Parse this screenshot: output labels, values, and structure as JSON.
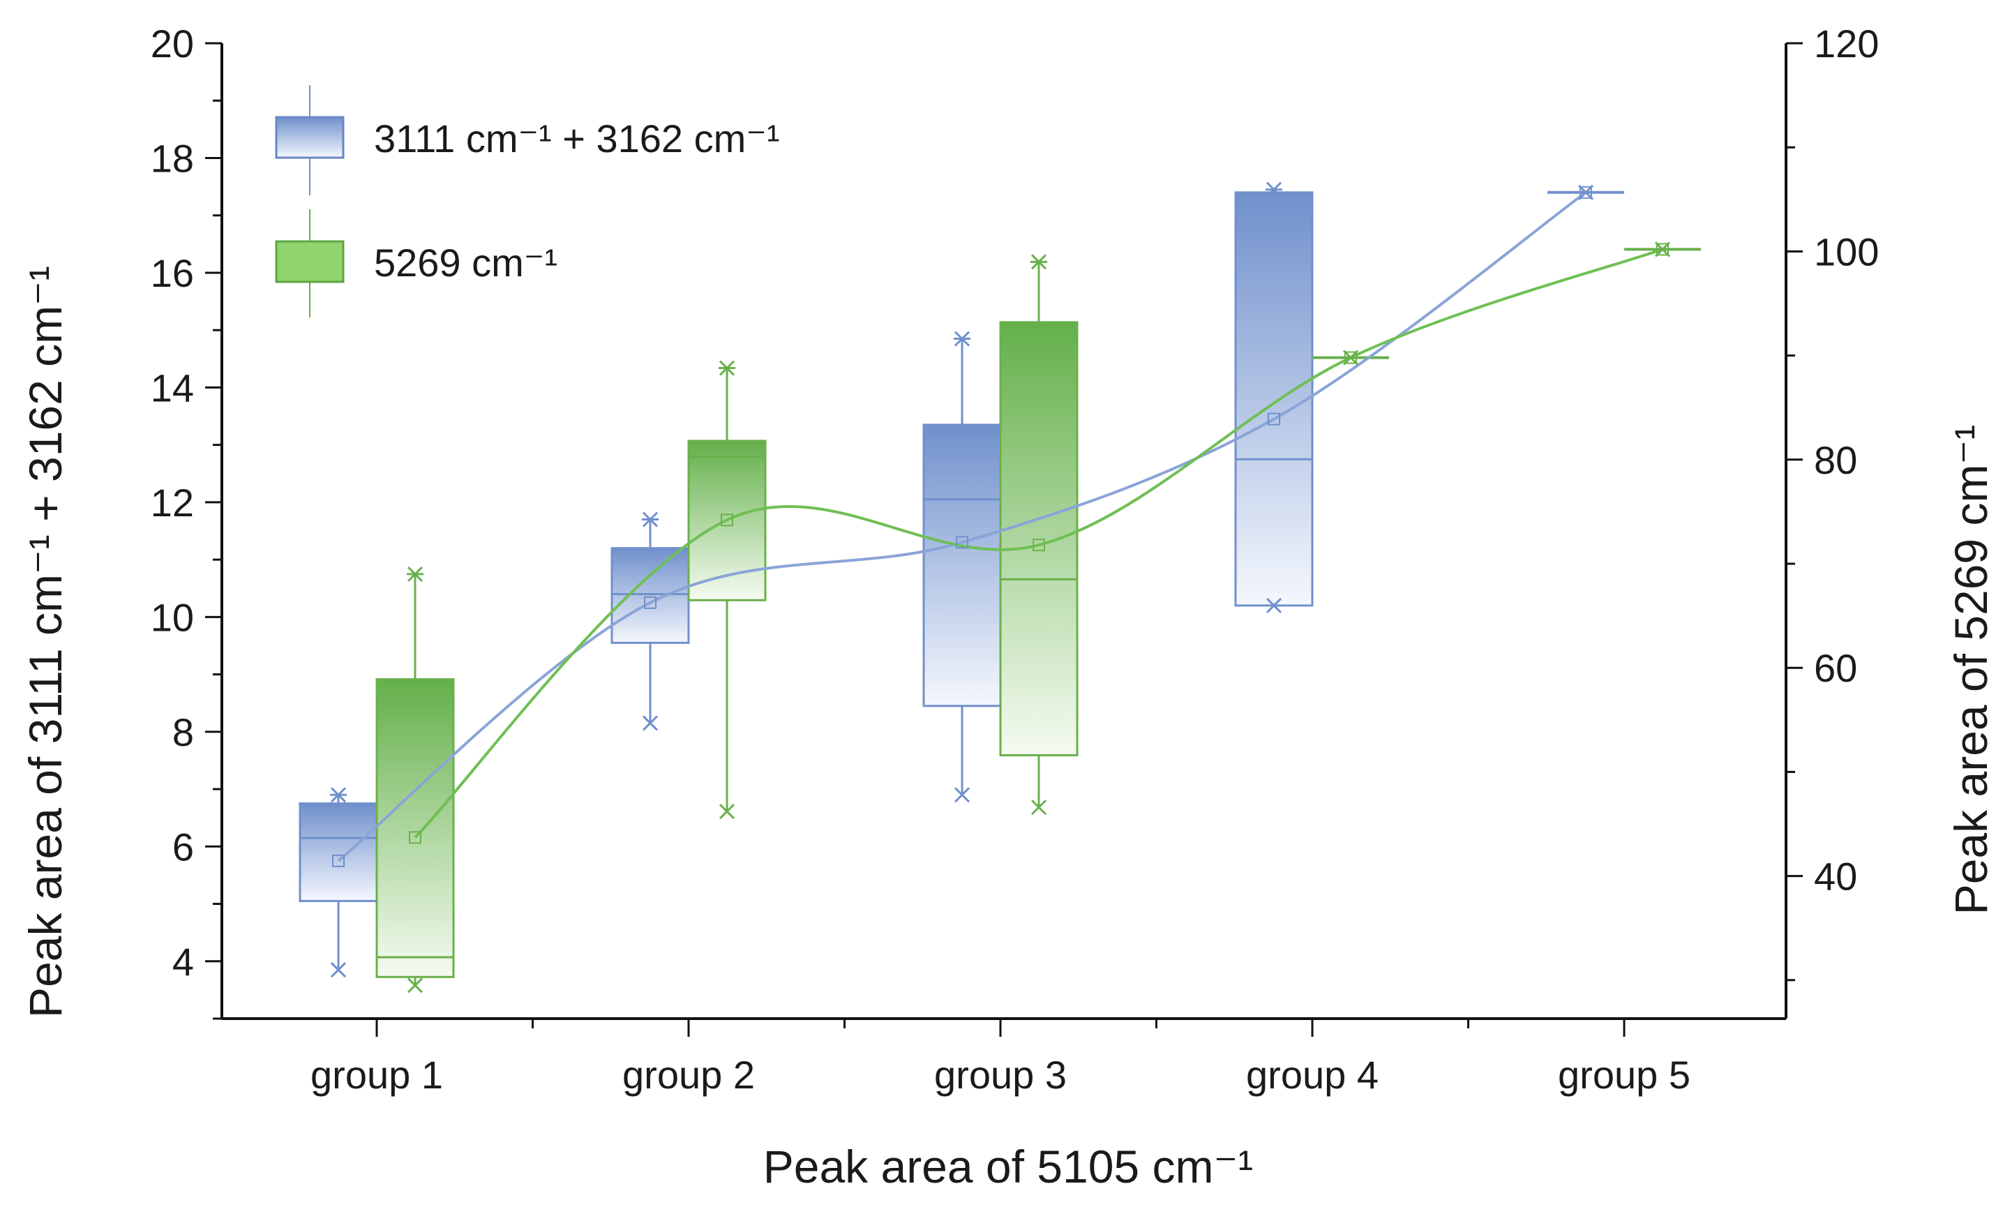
{
  "chart_data": {
    "type": "box",
    "xlabel": "Peak area of 5105 cm⁻¹",
    "ylabel_left": "Peak area of  3111 cm⁻¹ + 3162 cm⁻¹",
    "ylabel_right": "Peak area of 5269 cm⁻¹",
    "categories": [
      "group 1",
      "group 2",
      "group 3",
      "group 4",
      "group 5"
    ],
    "y_left": {
      "range": [
        3,
        20
      ],
      "ticks": [
        4,
        6,
        8,
        10,
        12,
        14,
        16,
        18,
        20
      ]
    },
    "y_right": {
      "range": [
        26.3,
        120
      ],
      "ticks": [
        40,
        60,
        80,
        100,
        120
      ]
    },
    "legend": [
      "3111 cm⁻¹ + 3162 cm⁻¹",
      "5269 cm⁻¹"
    ],
    "series": [
      {
        "name": "3111 cm⁻¹ + 3162 cm⁻¹",
        "axis": "left",
        "color": "#7090cc",
        "line_color": "#8aa4d8",
        "boxes": [
          {
            "category": "group 1",
            "min": 3.85,
            "q1": 5.05,
            "median": 6.15,
            "q3": 6.75,
            "max": 6.9,
            "mean": 5.75
          },
          {
            "category": "group 2",
            "min": 8.15,
            "q1": 9.55,
            "median": 10.4,
            "q3": 11.2,
            "max": 11.7,
            "mean": 10.25
          },
          {
            "category": "group 3",
            "min": 6.9,
            "q1": 8.45,
            "median": 12.05,
            "q3": 13.35,
            "max": 14.85,
            "mean": 11.3
          },
          {
            "category": "group 4",
            "min": 10.2,
            "q1": 10.2,
            "median": 12.75,
            "q3": 17.4,
            "max": 17.45,
            "mean": 13.45
          },
          {
            "category": "group 5",
            "min": 17.4,
            "q1": 17.4,
            "median": 17.4,
            "q3": 17.4,
            "max": 17.4,
            "mean": 17.4
          }
        ]
      },
      {
        "name": "5269 cm⁻¹",
        "axis": "right",
        "color": "#6ab04c",
        "line_color": "#6fbf55",
        "boxes": [
          {
            "category": "group 1",
            "min": 29.5,
            "q1": 30.3,
            "median": 32.2,
            "q3": 58.9,
            "max": 69.0,
            "mean": 43.7
          },
          {
            "category": "group 2",
            "min": 46.2,
            "q1": 66.5,
            "median": 80.3,
            "q3": 81.8,
            "max": 88.8,
            "mean": 74.2
          },
          {
            "category": "group 3",
            "min": 46.6,
            "q1": 51.6,
            "median": 68.5,
            "q3": 93.2,
            "max": 99.0,
            "mean": 71.8
          },
          {
            "category": "group 4",
            "min": 89.8,
            "q1": 89.8,
            "median": 89.8,
            "q3": 89.8,
            "max": 89.8,
            "mean": 89.8
          },
          {
            "category": "group 5",
            "min": 100.2,
            "q1": 100.2,
            "median": 100.2,
            "q3": 100.2,
            "max": 100.2,
            "mean": 100.2
          }
        ]
      }
    ]
  }
}
